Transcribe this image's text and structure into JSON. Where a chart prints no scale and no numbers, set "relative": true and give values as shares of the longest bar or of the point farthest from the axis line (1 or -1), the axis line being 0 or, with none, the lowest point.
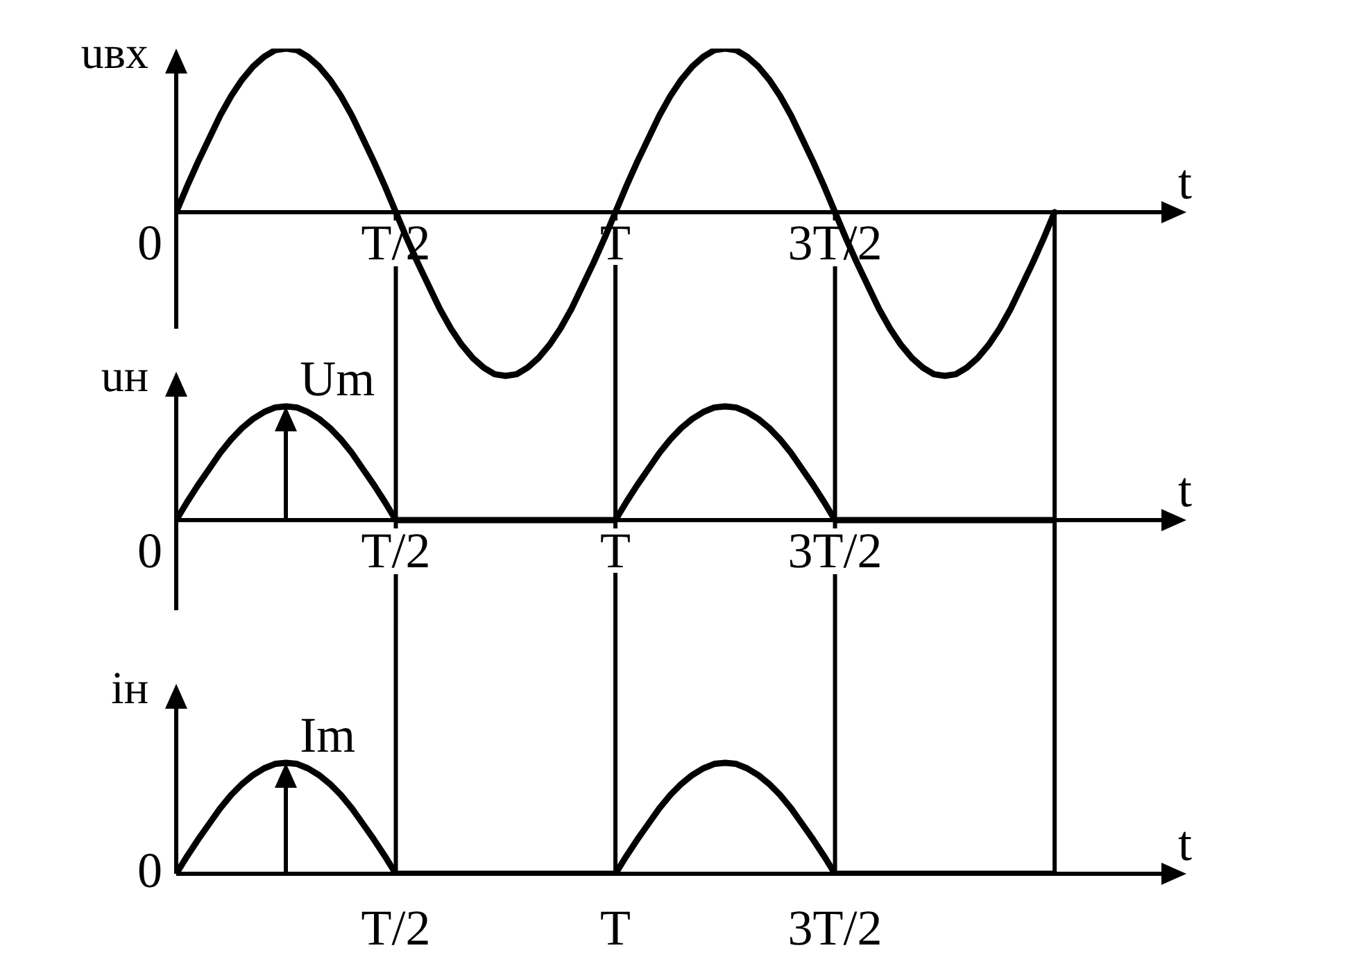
{
  "chart_data": [
    {
      "type": "line",
      "ylabel": "uвх",
      "xlabel": "t",
      "relative": true,
      "line_style": "solid",
      "tick_labels": "x",
      "categories": [
        null,
        null,
        null,
        null,
        null,
        null,
        null,
        null,
        null,
        null,
        null,
        null,
        null,
        null,
        null,
        null,
        null,
        null,
        null,
        null,
        "T/2",
        null,
        null,
        null,
        null,
        null,
        null,
        null,
        null,
        null,
        null,
        null,
        null,
        null,
        null,
        null,
        null,
        null,
        null,
        null,
        "T",
        null,
        null,
        null,
        null,
        null,
        null,
        null,
        null,
        null,
        null,
        null,
        null,
        null,
        null,
        null,
        null,
        null,
        null,
        null,
        "3T/2",
        null,
        null,
        null,
        null,
        null,
        null,
        null,
        null,
        null,
        null,
        null,
        null,
        null,
        null,
        null,
        null,
        null,
        null,
        null,
        null
      ],
      "series": [
        {
          "color": "#000000",
          "values": [
            0,
            0.16,
            0.31,
            0.45,
            0.59,
            0.71,
            0.81,
            0.89,
            0.95,
            0.99,
            1,
            0.99,
            0.95,
            0.89,
            0.81,
            0.71,
            0.59,
            0.45,
            0.31,
            0.16,
            0,
            -0.16,
            -0.31,
            -0.45,
            -0.59,
            -0.71,
            -0.81,
            -0.89,
            -0.95,
            -0.99,
            -1,
            -0.99,
            -0.95,
            -0.89,
            -0.81,
            -0.71,
            -0.59,
            -0.45,
            -0.31,
            -0.16,
            0,
            0.16,
            0.31,
            0.45,
            0.59,
            0.71,
            0.81,
            0.89,
            0.95,
            0.99,
            1,
            0.99,
            0.95,
            0.89,
            0.81,
            0.71,
            0.59,
            0.45,
            0.31,
            0.16,
            0,
            -0.16,
            -0.31,
            -0.45,
            -0.59,
            -0.71,
            -0.81,
            -0.89,
            -0.95,
            -0.99,
            -1,
            -0.99,
            -0.95,
            -0.89,
            -0.81,
            -0.71,
            -0.59,
            -0.45,
            -0.31,
            -0.16,
            0
          ]
        }
      ],
      "ref_lines": [
        {
          "axis": "x",
          "value": "T/2"
        },
        {
          "axis": "x",
          "value": "T"
        },
        {
          "axis": "x",
          "value": "3T/2"
        }
      ],
      "annotations": [
        "0"
      ]
    },
    {
      "type": "line",
      "ylabel": "uн",
      "xlabel": "t",
      "relative": true,
      "line_style": "solid",
      "tick_labels": "x",
      "grid": "x",
      "categories": [
        null,
        null,
        null,
        null,
        null,
        null,
        null,
        null,
        null,
        null,
        null,
        null,
        null,
        null,
        null,
        null,
        null,
        null,
        null,
        null,
        "T/2",
        null,
        null,
        null,
        null,
        null,
        null,
        null,
        null,
        null,
        null,
        null,
        null,
        null,
        null,
        null,
        null,
        null,
        null,
        null,
        "T",
        null,
        null,
        null,
        null,
        null,
        null,
        null,
        null,
        null,
        null,
        null,
        null,
        null,
        null,
        null,
        null,
        null,
        null,
        null,
        "3T/2",
        null,
        null,
        null,
        null,
        null,
        null,
        null,
        null,
        null,
        null,
        null,
        null,
        null,
        null,
        null,
        null,
        null,
        null,
        null,
        null
      ],
      "series": [
        {
          "color": "#000000",
          "values": [
            0,
            0.16,
            0.31,
            0.45,
            0.59,
            0.71,
            0.81,
            0.89,
            0.95,
            0.99,
            1,
            0.99,
            0.95,
            0.89,
            0.81,
            0.71,
            0.59,
            0.45,
            0.31,
            0.16,
            0,
            0,
            0,
            0,
            0,
            0,
            0,
            0,
            0,
            0,
            0,
            0,
            0,
            0,
            0,
            0,
            0,
            0,
            0,
            0,
            0,
            0.16,
            0.31,
            0.45,
            0.59,
            0.71,
            0.81,
            0.89,
            0.95,
            0.99,
            1,
            0.99,
            0.95,
            0.89,
            0.81,
            0.71,
            0.59,
            0.45,
            0.31,
            0.16,
            0,
            0,
            0,
            0,
            0,
            0,
            0,
            0,
            0,
            0,
            0,
            0,
            0,
            0,
            0,
            0,
            0,
            0,
            0,
            0,
            0
          ]
        }
      ],
      "annotations": [
        "0",
        "Um"
      ]
    },
    {
      "type": "line",
      "ylabel": "iн",
      "xlabel": "t",
      "relative": true,
      "line_style": "solid",
      "tick_labels": "x",
      "grid": "x",
      "categories": [
        null,
        null,
        null,
        null,
        null,
        null,
        null,
        null,
        null,
        null,
        null,
        null,
        null,
        null,
        null,
        null,
        null,
        null,
        null,
        null,
        "T/2",
        null,
        null,
        null,
        null,
        null,
        null,
        null,
        null,
        null,
        null,
        null,
        null,
        null,
        null,
        null,
        null,
        null,
        null,
        null,
        "T",
        null,
        null,
        null,
        null,
        null,
        null,
        null,
        null,
        null,
        null,
        null,
        null,
        null,
        null,
        null,
        null,
        null,
        null,
        null,
        "3T/2",
        null,
        null,
        null,
        null,
        null,
        null,
        null,
        null,
        null,
        null,
        null,
        null,
        null,
        null,
        null,
        null,
        null,
        null,
        null,
        null
      ],
      "series": [
        {
          "color": "#000000",
          "values": [
            0,
            0.16,
            0.31,
            0.45,
            0.59,
            0.71,
            0.81,
            0.89,
            0.95,
            0.99,
            1,
            0.99,
            0.95,
            0.89,
            0.81,
            0.71,
            0.59,
            0.45,
            0.31,
            0.16,
            0,
            0,
            0,
            0,
            0,
            0,
            0,
            0,
            0,
            0,
            0,
            0,
            0,
            0,
            0,
            0,
            0,
            0,
            0,
            0,
            0,
            0.16,
            0.31,
            0.45,
            0.59,
            0.71,
            0.81,
            0.89,
            0.95,
            0.99,
            1,
            0.99,
            0.95,
            0.89,
            0.81,
            0.71,
            0.59,
            0.45,
            0.31,
            0.16,
            0,
            0,
            0,
            0,
            0,
            0,
            0,
            0,
            0,
            0,
            0,
            0,
            0,
            0,
            0,
            0,
            0,
            0,
            0,
            0,
            0
          ]
        }
      ],
      "annotations": [
        "0",
        "Im"
      ]
    }
  ]
}
